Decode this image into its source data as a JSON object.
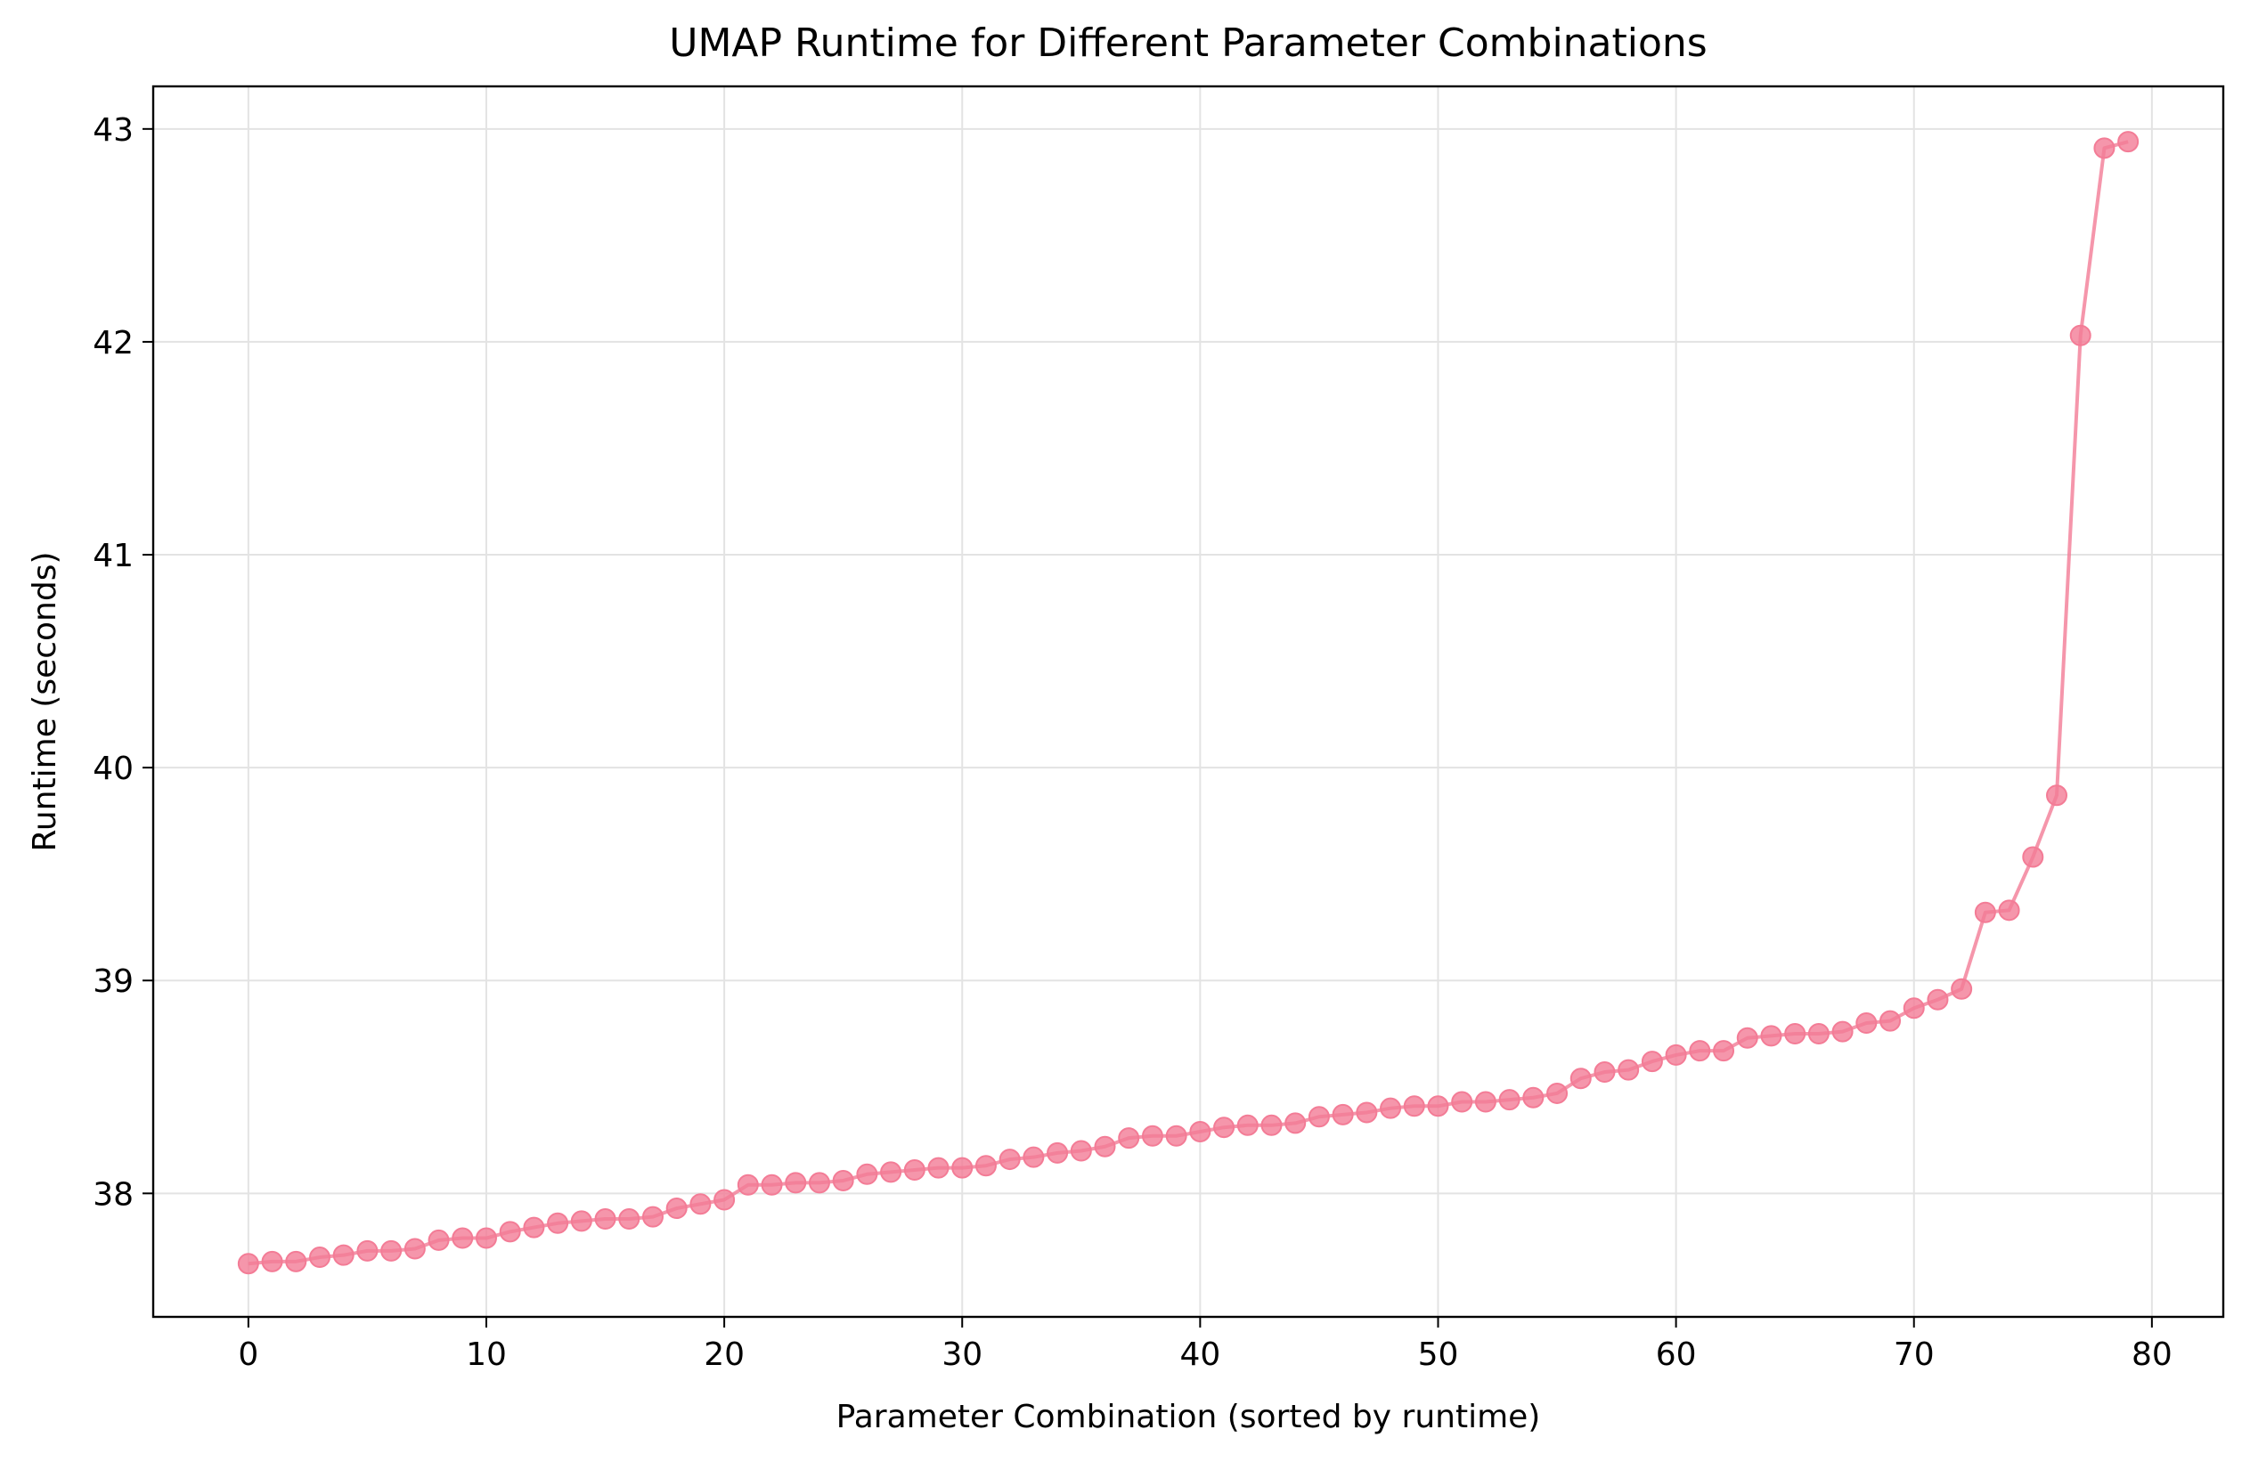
{
  "chart_data": {
    "type": "line",
    "title": "UMAP Runtime for Different Parameter Combinations",
    "xlabel": "Parameter Combination (sorted by runtime)",
    "ylabel": "Runtime (seconds)",
    "xlim": [
      -4,
      83
    ],
    "ylim": [
      37.42,
      43.2
    ],
    "xticks": [
      0,
      10,
      20,
      30,
      40,
      50,
      60,
      70,
      80
    ],
    "yticks": [
      38,
      39,
      40,
      41,
      42,
      43
    ],
    "grid": true,
    "legend": "none",
    "colors": {
      "line": "#f37c96",
      "marker": "#f37c96",
      "grid": "#e3e3e3",
      "axes": "#000000"
    },
    "series": [
      {
        "x": [
          0,
          1,
          2,
          3,
          4,
          5,
          6,
          7,
          8,
          9,
          10,
          11,
          12,
          13,
          14,
          15,
          16,
          17,
          18,
          19,
          20,
          21,
          22,
          23,
          24,
          25,
          26,
          27,
          28,
          29,
          30,
          31,
          32,
          33,
          34,
          35,
          36,
          37,
          38,
          39,
          40,
          41,
          42,
          43,
          44,
          45,
          46,
          47,
          48,
          49,
          50,
          51,
          52,
          53,
          54,
          55,
          56,
          57,
          58,
          59,
          60,
          61,
          62,
          63,
          64,
          65,
          66,
          67,
          68,
          69,
          70,
          71,
          72,
          73,
          74,
          75,
          76,
          77,
          78,
          79
        ],
        "y": [
          37.67,
          37.68,
          37.68,
          37.7,
          37.71,
          37.73,
          37.73,
          37.74,
          37.78,
          37.79,
          37.79,
          37.82,
          37.84,
          37.86,
          37.87,
          37.88,
          37.88,
          37.89,
          37.93,
          37.95,
          37.97,
          38.04,
          38.04,
          38.05,
          38.05,
          38.06,
          38.09,
          38.1,
          38.11,
          38.12,
          38.12,
          38.13,
          38.16,
          38.17,
          38.19,
          38.2,
          38.22,
          38.26,
          38.27,
          38.27,
          38.29,
          38.31,
          38.32,
          38.32,
          38.33,
          38.36,
          38.37,
          38.38,
          38.4,
          38.41,
          38.41,
          38.43,
          38.43,
          38.44,
          38.45,
          38.47,
          38.54,
          38.57,
          38.58,
          38.62,
          38.65,
          38.67,
          38.67,
          38.73,
          38.74,
          38.75,
          38.75,
          38.76,
          38.8,
          38.81,
          38.87,
          38.91,
          38.96,
          39.32,
          39.33,
          39.58,
          39.87,
          42.03,
          42.91,
          42.94
        ]
      }
    ]
  }
}
